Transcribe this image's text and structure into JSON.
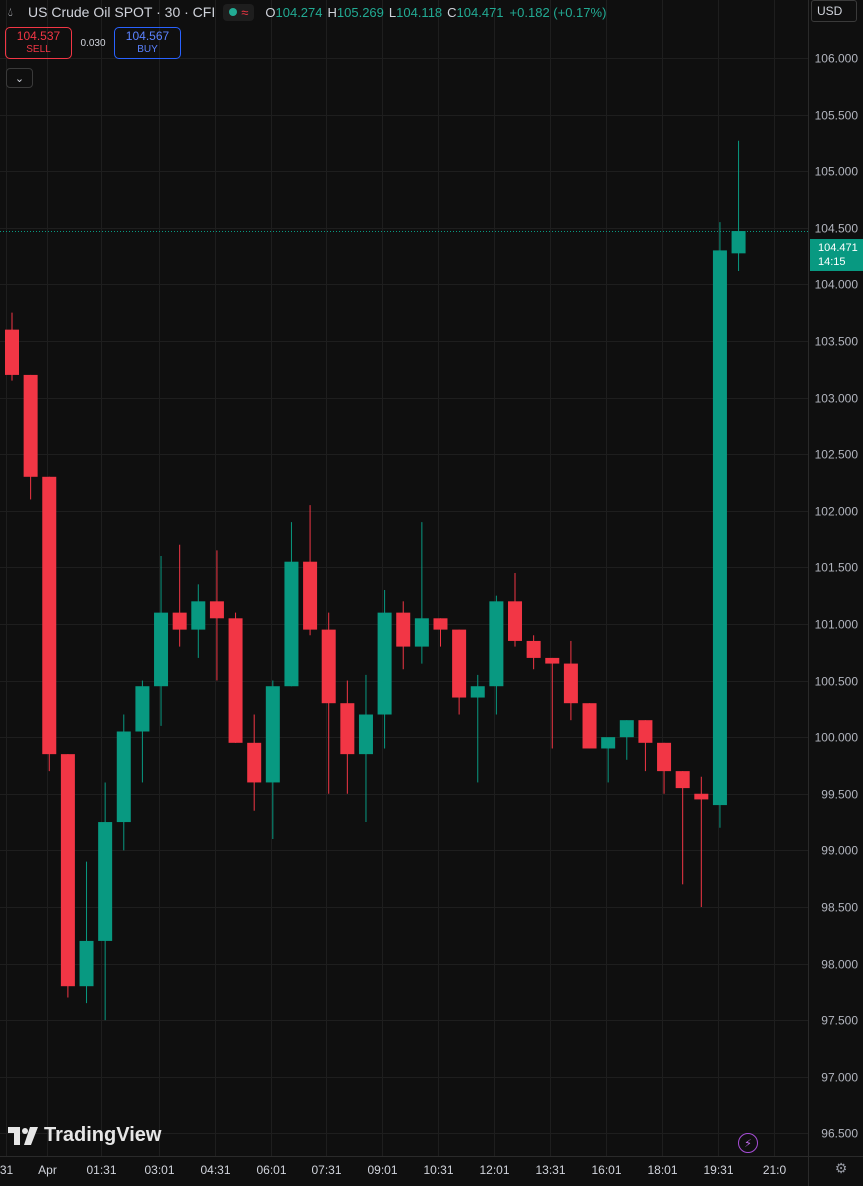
{
  "header": {
    "symbol_title": "US Crude Oil SPOT · 30 · CFI",
    "icons": [
      "drop-icon",
      "market-open-dot-icon",
      "wave-icon"
    ],
    "wave_glyph": "≈",
    "open_label": "O",
    "open_value": "104.274",
    "high_label": "H",
    "high_value": "105.269",
    "low_label": "L",
    "low_value": "104.118",
    "close_label": "C",
    "close_value": "104.471",
    "change_value": "+0.182 (+0.17%)"
  },
  "trade": {
    "sell_price": "104.537",
    "sell_label": "SELL",
    "spread": "0.030",
    "buy_price": "104.567",
    "buy_label": "BUY"
  },
  "currency": "USD",
  "current_price": {
    "price": "104.471",
    "countdown": "14:15",
    "color": "#089981"
  },
  "branding": "TradingView",
  "colors": {
    "up": "#089981",
    "down": "#f23645",
    "background": "#0f0f0f",
    "grid": "#1e1e1e"
  },
  "chart_data": {
    "type": "candlestick",
    "interval": "30",
    "ylim": [
      96.3,
      106.3
    ],
    "y_ticks": [
      "96.500",
      "97.000",
      "97.500",
      "98.000",
      "98.500",
      "99.000",
      "99.500",
      "100.000",
      "100.500",
      "101.000",
      "101.500",
      "102.000",
      "102.500",
      "103.000",
      "103.500",
      "104.000",
      "104.500",
      "105.000",
      "105.500",
      "106.000"
    ],
    "x_tick_labels": [
      "31",
      "Apr",
      "01:31",
      "03:01",
      "04:31",
      "06:01",
      "07:31",
      "09:01",
      "10:31",
      "12:01",
      "13:31",
      "16:01",
      "18:01",
      "19:31",
      "21:0"
    ],
    "x_tick_slots": [
      0,
      2.2,
      5.1,
      8.2,
      11.2,
      14.2,
      17.2,
      20.2,
      23.2,
      26.2,
      29.2,
      32.2,
      35.2,
      38.2,
      41.2
    ],
    "candles": [
      {
        "o": 103.6,
        "h": 103.75,
        "l": 103.15,
        "c": 103.2
      },
      {
        "o": 103.2,
        "h": 103.2,
        "l": 102.1,
        "c": 102.3
      },
      {
        "o": 102.3,
        "h": 102.3,
        "l": 99.7,
        "c": 99.85
      },
      {
        "o": 99.85,
        "h": 99.85,
        "l": 97.7,
        "c": 97.8
      },
      {
        "o": 97.8,
        "h": 98.9,
        "l": 97.65,
        "c": 98.2
      },
      {
        "o": 98.2,
        "h": 99.6,
        "l": 97.5,
        "c": 99.25
      },
      {
        "o": 99.25,
        "h": 100.2,
        "l": 99.0,
        "c": 100.05
      },
      {
        "o": 100.05,
        "h": 100.5,
        "l": 99.6,
        "c": 100.45
      },
      {
        "o": 100.45,
        "h": 101.6,
        "l": 100.1,
        "c": 101.1
      },
      {
        "o": 101.1,
        "h": 101.7,
        "l": 100.8,
        "c": 100.95
      },
      {
        "o": 100.95,
        "h": 101.35,
        "l": 100.7,
        "c": 101.2
      },
      {
        "o": 101.2,
        "h": 101.65,
        "l": 100.5,
        "c": 101.05
      },
      {
        "o": 101.05,
        "h": 101.1,
        "l": 99.95,
        "c": 99.95
      },
      {
        "o": 99.95,
        "h": 100.2,
        "l": 99.35,
        "c": 99.6
      },
      {
        "o": 99.6,
        "h": 100.5,
        "l": 99.1,
        "c": 100.45
      },
      {
        "o": 100.45,
        "h": 101.9,
        "l": 100.45,
        "c": 101.55
      },
      {
        "o": 101.55,
        "h": 102.05,
        "l": 100.9,
        "c": 100.95
      },
      {
        "o": 100.95,
        "h": 101.1,
        "l": 99.5,
        "c": 100.3
      },
      {
        "o": 100.3,
        "h": 100.5,
        "l": 99.5,
        "c": 99.85
      },
      {
        "o": 99.85,
        "h": 100.55,
        "l": 99.25,
        "c": 100.2
      },
      {
        "o": 100.2,
        "h": 101.3,
        "l": 99.9,
        "c": 101.1
      },
      {
        "o": 101.1,
        "h": 101.2,
        "l": 100.6,
        "c": 100.8
      },
      {
        "o": 100.8,
        "h": 101.9,
        "l": 100.65,
        "c": 101.05
      },
      {
        "o": 101.05,
        "h": 101.05,
        "l": 100.8,
        "c": 100.95
      },
      {
        "o": 100.95,
        "h": 100.95,
        "l": 100.2,
        "c": 100.35
      },
      {
        "o": 100.35,
        "h": 100.55,
        "l": 99.6,
        "c": 100.45
      },
      {
        "o": 100.45,
        "h": 101.25,
        "l": 100.2,
        "c": 101.2
      },
      {
        "o": 101.2,
        "h": 101.45,
        "l": 100.8,
        "c": 100.85
      },
      {
        "o": 100.85,
        "h": 100.9,
        "l": 100.6,
        "c": 100.7
      },
      {
        "o": 100.7,
        "h": 100.7,
        "l": 99.9,
        "c": 100.65
      },
      {
        "o": 100.65,
        "h": 100.85,
        "l": 100.15,
        "c": 100.3
      },
      {
        "o": 100.3,
        "h": 100.3,
        "l": 99.9,
        "c": 99.9
      },
      {
        "o": 99.9,
        "h": 99.95,
        "l": 99.6,
        "c": 100.0
      },
      {
        "o": 100.0,
        "h": 100.15,
        "l": 99.8,
        "c": 100.15
      },
      {
        "o": 100.15,
        "h": 100.15,
        "l": 99.7,
        "c": 99.95
      },
      {
        "o": 99.95,
        "h": 99.95,
        "l": 99.5,
        "c": 99.7
      },
      {
        "o": 99.7,
        "h": 99.7,
        "l": 98.7,
        "c": 99.55
      },
      {
        "o": 99.5,
        "h": 99.65,
        "l": 98.5,
        "c": 99.45
      },
      {
        "o": 99.4,
        "h": 104.55,
        "l": 99.2,
        "c": 104.3
      },
      {
        "o": 104.274,
        "h": 105.269,
        "l": 104.118,
        "c": 104.471
      }
    ]
  }
}
